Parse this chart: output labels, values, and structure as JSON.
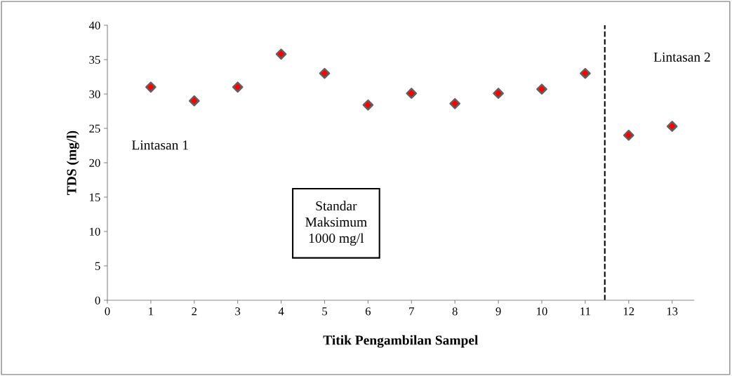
{
  "chart_data": {
    "type": "scatter",
    "xlabel": "Titik Pengambilan Sampel",
    "ylabel": "TDS (mg/l)",
    "x": [
      1,
      2,
      3,
      4,
      5,
      6,
      7,
      8,
      9,
      10,
      11,
      12,
      13
    ],
    "series": [
      {
        "color": "#ff0000",
        "values": [
          31.0,
          29.0,
          31.0,
          35.8,
          33.0,
          28.4,
          30.1,
          28.6,
          30.1,
          30.7,
          33.0,
          24.0,
          25.3
        ]
      }
    ],
    "marker": "diamond",
    "xlim": [
      0,
      13.5
    ],
    "xticks": [
      0,
      1,
      2,
      3,
      4,
      5,
      6,
      7,
      8,
      9,
      10,
      11,
      12,
      13
    ],
    "ylim": [
      0,
      40
    ],
    "yticks": [
      0,
      5,
      10,
      15,
      20,
      25,
      30,
      35,
      40
    ],
    "ref_lines": [
      {
        "axis": "x",
        "value": 11.45,
        "color": "#000000",
        "line_style": "dashed"
      }
    ],
    "annotations": [
      "Lintasan 1",
      "Lintasan 2",
      "Standar\nMaksimum\n1000 mg/l"
    ],
    "grid": false,
    "legend": false
  }
}
